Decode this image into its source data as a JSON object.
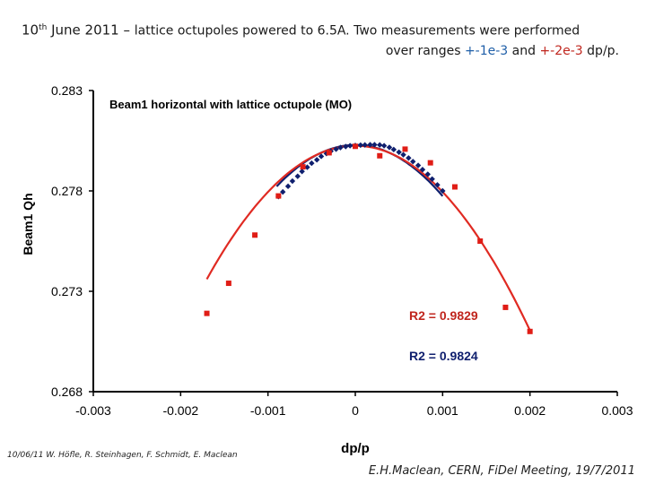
{
  "title": {
    "date_day": "10",
    "date_sup": "th",
    "date_rest": " June 2011 – ",
    "line1_rest": "lattice octupoles powered to 6.5A. Two measurements were performed",
    "line2_prefix": "over ranges ",
    "range1": "+-1e-3",
    "line2_mid": " and ",
    "range2": "+-2e-3",
    "line2_suffix": " dp/p."
  },
  "footer": {
    "left": "10/06/11   W. Höfle, R. Steinhagen, F. Schmidt, E. Maclean",
    "right": "E.H.Maclean, CERN, FiDel Meeting, 19/7/2011"
  },
  "colors": {
    "series_blue": "#0f1f6e",
    "series_red": "#e01d16",
    "fit": "#e02a22",
    "axis": "#000000"
  },
  "chart_data": {
    "type": "scatter",
    "title": "Beam1 horizontal with lattice octupole (MO)",
    "xlabel": "dp/p",
    "ylabel": "Beam1 Qh",
    "xlim": [
      -0.003,
      0.003
    ],
    "ylim": [
      0.268,
      0.283
    ],
    "xticks": [
      "-0.003",
      "-0.002",
      "-0.001",
      "0",
      "0.001",
      "0.002",
      "0.003"
    ],
    "yticks": [
      "0.268",
      "0.273",
      "0.278",
      "0.283"
    ],
    "series": [
      {
        "name": "+-1e-3 dp/p",
        "color": "series_blue",
        "marker": "diamond",
        "x": [
          -0.00088,
          -0.00083,
          -0.00077,
          -0.00072,
          -0.00066,
          -0.00061,
          -0.00055,
          -0.0005,
          -0.00044,
          -0.00039,
          -0.00033,
          -0.00028,
          -0.00022,
          -0.00017,
          -0.00011,
          -6e-05,
          0.0,
          6e-05,
          0.00011,
          0.00017,
          0.00022,
          0.00028,
          0.00033,
          0.00039,
          0.00044,
          0.0005,
          0.00055,
          0.00061,
          0.00066,
          0.00072,
          0.00077,
          0.00083,
          0.00088,
          0.00094,
          0.001
        ],
        "y": [
          0.27772,
          0.27795,
          0.27823,
          0.27849,
          0.27873,
          0.27897,
          0.27918,
          0.27938,
          0.27955,
          0.27972,
          0.27986,
          0.27998,
          0.28008,
          0.28016,
          0.28021,
          0.28025,
          0.28026,
          0.28028,
          0.28029,
          0.2803,
          0.2803,
          0.28029,
          0.28025,
          0.28017,
          0.28006,
          0.27993,
          0.2798,
          0.27964,
          0.27946,
          0.27927,
          0.27906,
          0.27883,
          0.27859,
          0.2783,
          0.278
        ],
        "fit": {
          "type": "poly2",
          "r2": "0.9824",
          "r2_label": "R2 = 0.9824"
        }
      },
      {
        "name": "+-2e-3 dp/p",
        "color": "series_red",
        "marker": "square",
        "x": [
          -0.0017,
          -0.00145,
          -0.00115,
          -0.00088,
          -0.0006,
          -0.0003,
          0.0,
          0.00028,
          0.00057,
          0.00086,
          0.00114,
          0.00143,
          0.00172,
          0.002
        ],
        "y": [
          0.2719,
          0.2734,
          0.2758,
          0.27775,
          0.2792,
          0.2799,
          0.28022,
          0.27975,
          0.28008,
          0.2794,
          0.2782,
          0.2755,
          0.2722,
          0.271
        ],
        "fit": {
          "type": "poly2",
          "r2": "0.9829",
          "r2_label": "R2 = 0.9829"
        }
      }
    ],
    "fit_curves": [
      {
        "series": "+-1e-3 dp/p",
        "color": "series_blue",
        "x_range": [
          -0.0009,
          0.001
        ],
        "coef": [
          0.28029,
          -2e-07,
          -2550
        ]
      },
      {
        "series": "+-2e-3 dp/p",
        "color": "fit",
        "x_range": [
          -0.0017,
          0.002
        ],
        "coef": [
          0.28025,
          -1e-07,
          -2300
        ]
      }
    ]
  }
}
